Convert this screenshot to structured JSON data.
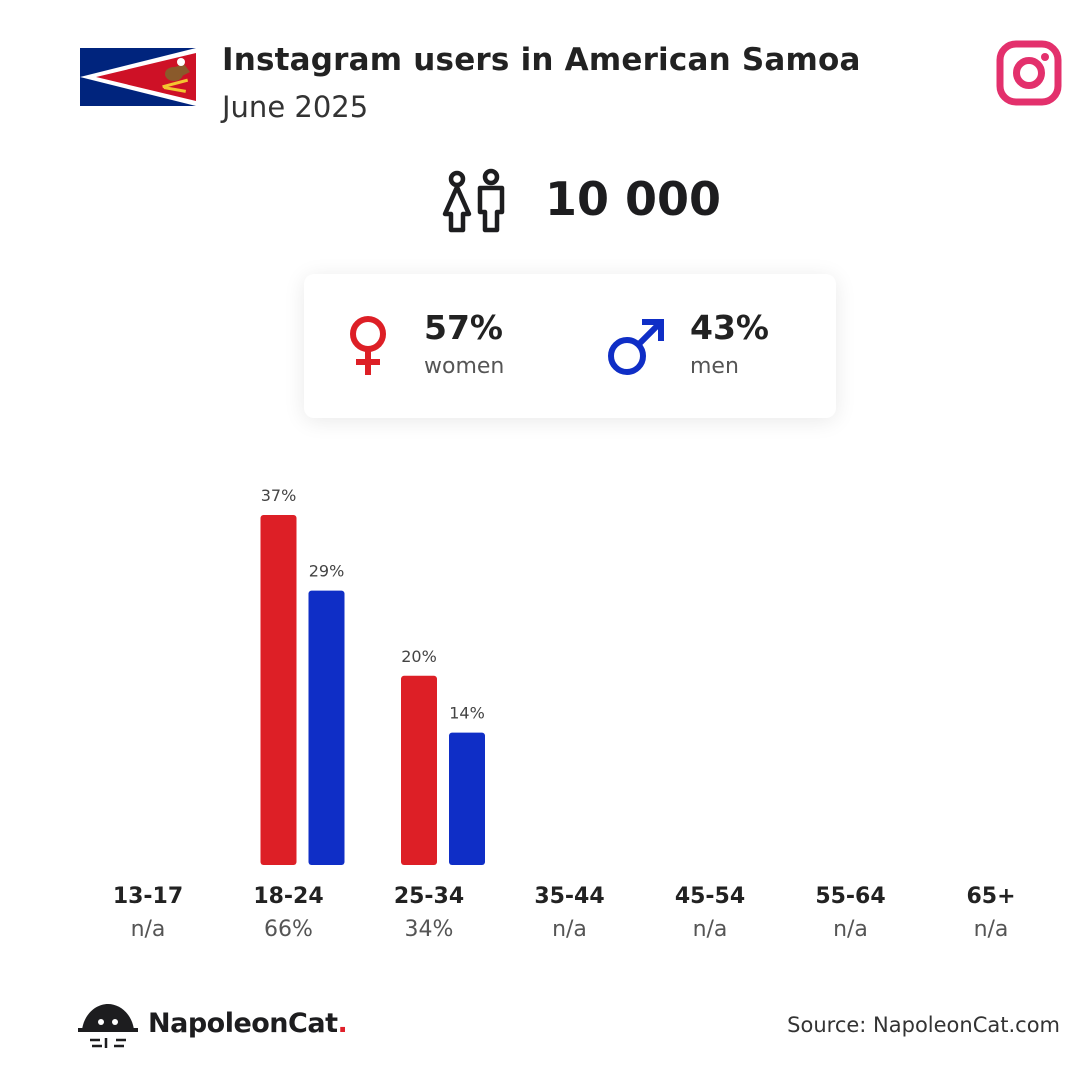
{
  "header": {
    "title": "Instagram users in American Samoa",
    "subtitle": "June 2025",
    "flag_icon": "american-samoa-flag",
    "platform_icon": "instagram-icon"
  },
  "summary": {
    "total_users": "10 000",
    "users_icon": "users-icon"
  },
  "gender": {
    "women": {
      "pct": "57%",
      "label": "women",
      "icon": "female-symbol-icon"
    },
    "men": {
      "pct": "43%",
      "label": "men",
      "icon": "male-symbol-icon"
    }
  },
  "colors": {
    "women": "#dd1f26",
    "men": "#0f2ec6",
    "instagram": "#e3306c",
    "flag_navy": "#00247d"
  },
  "chart_data": {
    "type": "bar",
    "categories": [
      "13-17",
      "18-24",
      "25-34",
      "35-44",
      "45-54",
      "55-64",
      "65+"
    ],
    "series": [
      {
        "name": "women",
        "values": [
          null,
          37,
          20,
          null,
          null,
          null,
          null
        ]
      },
      {
        "name": "men",
        "values": [
          null,
          29,
          14,
          null,
          null,
          null,
          null
        ]
      }
    ],
    "data_labels": {
      "women": [
        "",
        "37%",
        "20%",
        "",
        "",
        "",
        ""
      ],
      "men": [
        "",
        "29%",
        "14%",
        "",
        "",
        "",
        ""
      ]
    },
    "category_totals": [
      "n/a",
      "66%",
      "34%",
      "n/a",
      "n/a",
      "n/a",
      "n/a"
    ],
    "ylim": [
      0,
      37
    ],
    "grid": false
  },
  "footer": {
    "brand_name": "NapoleonCat",
    "brand_dot": ".",
    "source": "Source: NapoleonCat.com",
    "logo_icon": "napoleoncat-logo-icon"
  }
}
